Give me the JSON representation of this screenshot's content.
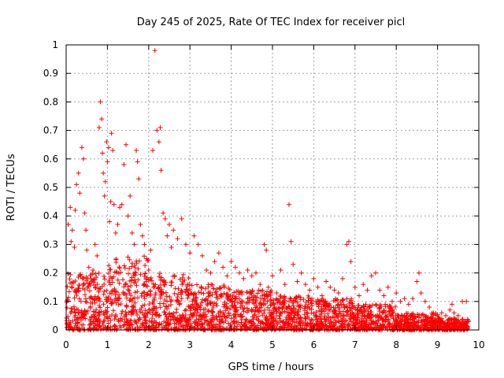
{
  "chart_data": {
    "type": "scatter",
    "title": "Day 245 of 2025, Rate Of TEC Index for receiver picl",
    "xlabel": "GPS time / hours",
    "ylabel": "ROTI / TECUs",
    "xlim": [
      0,
      10
    ],
    "ylim": [
      0,
      1
    ],
    "xticks": [
      0,
      1,
      2,
      3,
      4,
      5,
      6,
      7,
      8,
      9,
      10
    ],
    "xtick_labels": [
      "0",
      "1",
      "2",
      "3",
      "4",
      "5",
      "6",
      "7",
      "8",
      "9",
      "10"
    ],
    "yticks": [
      0,
      0.1,
      0.2,
      0.3,
      0.4,
      0.5,
      0.6,
      0.7,
      0.8,
      0.9,
      1
    ],
    "ytick_labels": [
      "0",
      "0.1",
      "0.2",
      "0.3",
      "0.4",
      "0.5",
      "0.6",
      "0.7",
      "0.8",
      "0.9",
      "1"
    ],
    "grid": true,
    "marker": "+",
    "color": "#ff0000",
    "series": [
      {
        "name": "ROTI",
        "points": [
          [
            0.02,
            0.02
          ],
          [
            0.05,
            0.37
          ],
          [
            0.1,
            0.43
          ],
          [
            0.12,
            0.31
          ],
          [
            0.15,
            0.35
          ],
          [
            0.2,
            0.29
          ],
          [
            0.22,
            0.42
          ],
          [
            0.25,
            0.51
          ],
          [
            0.3,
            0.55
          ],
          [
            0.33,
            0.48
          ],
          [
            0.38,
            0.64
          ],
          [
            0.42,
            0.6
          ],
          [
            0.45,
            0.41
          ],
          [
            0.48,
            0.35
          ],
          [
            0.5,
            0.28
          ],
          [
            0.55,
            0.22
          ],
          [
            0.6,
            0.18
          ],
          [
            0.65,
            0.21
          ],
          [
            0.7,
            0.3
          ],
          [
            0.75,
            0.26
          ],
          [
            0.8,
            0.71
          ],
          [
            0.83,
            0.8
          ],
          [
            0.86,
            0.74
          ],
          [
            0.88,
            0.62
          ],
          [
            0.9,
            0.55
          ],
          [
            0.93,
            0.47
          ],
          [
            0.95,
            0.52
          ],
          [
            0.98,
            0.66
          ],
          [
            1.0,
            0.59
          ],
          [
            1.03,
            0.64
          ],
          [
            1.05,
            0.38
          ],
          [
            1.08,
            0.45
          ],
          [
            1.1,
            0.69
          ],
          [
            1.13,
            0.63
          ],
          [
            1.16,
            0.44
          ],
          [
            1.2,
            0.34
          ],
          [
            1.25,
            0.37
          ],
          [
            1.3,
            0.43
          ],
          [
            1.35,
            0.44
          ],
          [
            1.4,
            0.58
          ],
          [
            1.45,
            0.65
          ],
          [
            1.5,
            0.4
          ],
          [
            1.55,
            0.47
          ],
          [
            1.6,
            0.34
          ],
          [
            1.65,
            0.3
          ],
          [
            1.7,
            0.63
          ],
          [
            1.73,
            0.59
          ],
          [
            1.76,
            0.53
          ],
          [
            1.8,
            0.37
          ],
          [
            1.85,
            0.33
          ],
          [
            1.9,
            0.3
          ],
          [
            1.95,
            0.25
          ],
          [
            2.0,
            0.21
          ],
          [
            2.05,
            0.28
          ],
          [
            2.1,
            0.63
          ],
          [
            2.15,
            0.98
          ],
          [
            2.2,
            0.7
          ],
          [
            2.25,
            0.66
          ],
          [
            2.28,
            0.71
          ],
          [
            2.3,
            0.56
          ],
          [
            2.35,
            0.41
          ],
          [
            2.4,
            0.39
          ],
          [
            2.45,
            0.33
          ],
          [
            2.5,
            0.37
          ],
          [
            2.55,
            0.29
          ],
          [
            2.6,
            0.35
          ],
          [
            2.7,
            0.32
          ],
          [
            2.8,
            0.39
          ],
          [
            2.9,
            0.3
          ],
          [
            3.0,
            0.27
          ],
          [
            3.1,
            0.33
          ],
          [
            3.2,
            0.3
          ],
          [
            3.3,
            0.26
          ],
          [
            3.4,
            0.21
          ],
          [
            3.5,
            0.2
          ],
          [
            3.6,
            0.24
          ],
          [
            3.7,
            0.27
          ],
          [
            3.8,
            0.22
          ],
          [
            3.9,
            0.19
          ],
          [
            4.0,
            0.24
          ],
          [
            4.1,
            0.22
          ],
          [
            4.2,
            0.2
          ],
          [
            4.3,
            0.18
          ],
          [
            4.4,
            0.21
          ],
          [
            4.5,
            0.19
          ],
          [
            4.6,
            0.2
          ],
          [
            4.7,
            0.16
          ],
          [
            4.8,
            0.3
          ],
          [
            4.85,
            0.28
          ],
          [
            4.9,
            0.15
          ],
          [
            5.0,
            0.19
          ],
          [
            5.1,
            0.13
          ],
          [
            5.2,
            0.21
          ],
          [
            5.3,
            0.16
          ],
          [
            5.4,
            0.44
          ],
          [
            5.45,
            0.31
          ],
          [
            5.5,
            0.23
          ],
          [
            5.6,
            0.17
          ],
          [
            5.7,
            0.2
          ],
          [
            5.8,
            0.16
          ],
          [
            5.9,
            0.14
          ],
          [
            6.0,
            0.18
          ],
          [
            6.1,
            0.15
          ],
          [
            6.2,
            0.12
          ],
          [
            6.3,
            0.17
          ],
          [
            6.4,
            0.15
          ],
          [
            6.5,
            0.14
          ],
          [
            6.6,
            0.13
          ],
          [
            6.7,
            0.18
          ],
          [
            6.8,
            0.3
          ],
          [
            6.85,
            0.31
          ],
          [
            6.9,
            0.24
          ],
          [
            7.0,
            0.15
          ],
          [
            7.1,
            0.12
          ],
          [
            7.2,
            0.16
          ],
          [
            7.3,
            0.14
          ],
          [
            7.4,
            0.19
          ],
          [
            7.5,
            0.2
          ],
          [
            7.6,
            0.14
          ],
          [
            7.7,
            0.12
          ],
          [
            7.8,
            0.15
          ],
          [
            7.9,
            0.1
          ],
          [
            8.0,
            0.13
          ],
          [
            8.1,
            0.1
          ],
          [
            8.2,
            0.11
          ],
          [
            8.3,
            0.09
          ],
          [
            8.4,
            0.11
          ],
          [
            8.5,
            0.17
          ],
          [
            8.55,
            0.2
          ],
          [
            8.6,
            0.13
          ],
          [
            8.7,
            0.1
          ],
          [
            8.8,
            0.08
          ],
          [
            8.9,
            0.06
          ],
          [
            9.0,
            0.05
          ],
          [
            9.1,
            0.06
          ],
          [
            9.2,
            0.05
          ],
          [
            9.3,
            0.07
          ],
          [
            9.35,
            0.09
          ],
          [
            9.4,
            0.06
          ],
          [
            9.5,
            0.05
          ],
          [
            9.6,
            0.1
          ],
          [
            9.7,
            0.1
          ],
          [
            9.75,
            0.03
          ]
        ]
      }
    ],
    "dense_bands": [
      {
        "x_start": 0.0,
        "x_end": 1.0,
        "y_max": 0.2
      },
      {
        "x_start": 1.0,
        "x_end": 2.0,
        "y_max": 0.26
      },
      {
        "x_start": 2.0,
        "x_end": 3.0,
        "y_max": 0.2
      },
      {
        "x_start": 3.0,
        "x_end": 4.0,
        "y_max": 0.16
      },
      {
        "x_start": 4.0,
        "x_end": 5.0,
        "y_max": 0.14
      },
      {
        "x_start": 5.0,
        "x_end": 6.0,
        "y_max": 0.12
      },
      {
        "x_start": 6.0,
        "x_end": 7.0,
        "y_max": 0.11
      },
      {
        "x_start": 7.0,
        "x_end": 8.0,
        "y_max": 0.09
      },
      {
        "x_start": 8.0,
        "x_end": 9.0,
        "y_max": 0.06
      },
      {
        "x_start": 9.0,
        "x_end": 9.75,
        "y_max": 0.04
      }
    ]
  }
}
